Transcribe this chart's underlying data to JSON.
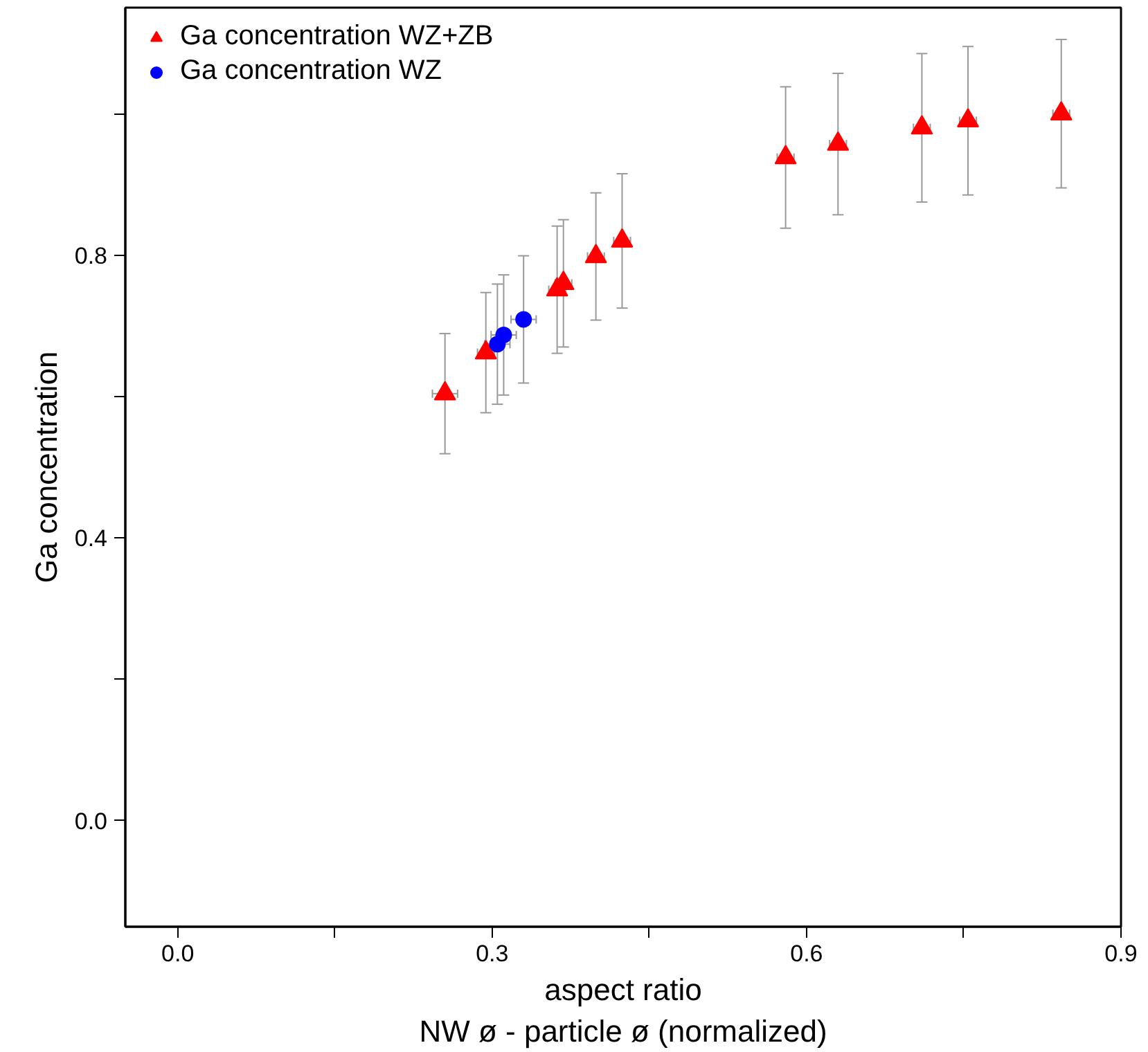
{
  "chart_data": {
    "type": "scatter",
    "xlabel": "aspect ratio\nNW ø - particle ø (normalized)",
    "ylabel": "Ga concentration",
    "xlim": [
      -0.05,
      0.9
    ],
    "ylim": [
      -0.15,
      1.15
    ],
    "xticks": [
      {
        "value": 0,
        "label": "0.0"
      },
      {
        "value": 0.15,
        "label": null
      },
      0.3,
      {
        "value": 0.45,
        "label": null
      },
      0.6,
      {
        "value": 0.75,
        "label": null
      },
      0.9
    ],
    "yticks": [
      {
        "value": 0,
        "label": "0.0"
      },
      {
        "value": 0.2,
        "label": null
      },
      0.4,
      {
        "value": 0.6,
        "label": null
      },
      0.8,
      {
        "value": 1.0,
        "label": null
      }
    ],
    "grid": false,
    "legend": "top left",
    "series": [
      {
        "name": "Ga concentration WZ+ZB",
        "color": "#ff0000",
        "marker": "triangle",
        "x": [
          0.255,
          0.294,
          0.362,
          0.368,
          0.399,
          0.424,
          0.58,
          0.63,
          0.71,
          0.754,
          0.843
        ],
        "values": [
          0.604,
          0.662,
          0.751,
          0.76,
          0.798,
          0.82,
          0.938,
          0.957,
          0.98,
          0.99,
          1.0
        ],
        "errors": [
          0.085,
          0.085,
          0.09,
          0.09,
          0.09,
          0.095,
          0.1,
          0.1,
          0.105,
          0.105,
          0.105
        ],
        "xerrors": [
          0.012,
          0.008,
          0.008,
          0.008,
          0.008,
          0.008,
          0.008,
          0.008,
          0.008,
          0.008,
          0.008
        ]
      },
      {
        "name": "Ga concentration WZ",
        "color": "#0000ff",
        "marker": "circle",
        "x": [
          0.305,
          0.311,
          0.33
        ],
        "values": [
          0.674,
          0.687,
          0.709
        ],
        "errors": [
          0.085,
          0.085,
          0.09
        ],
        "xerrors": [
          0.012,
          0.012,
          0.012
        ]
      }
    ]
  }
}
